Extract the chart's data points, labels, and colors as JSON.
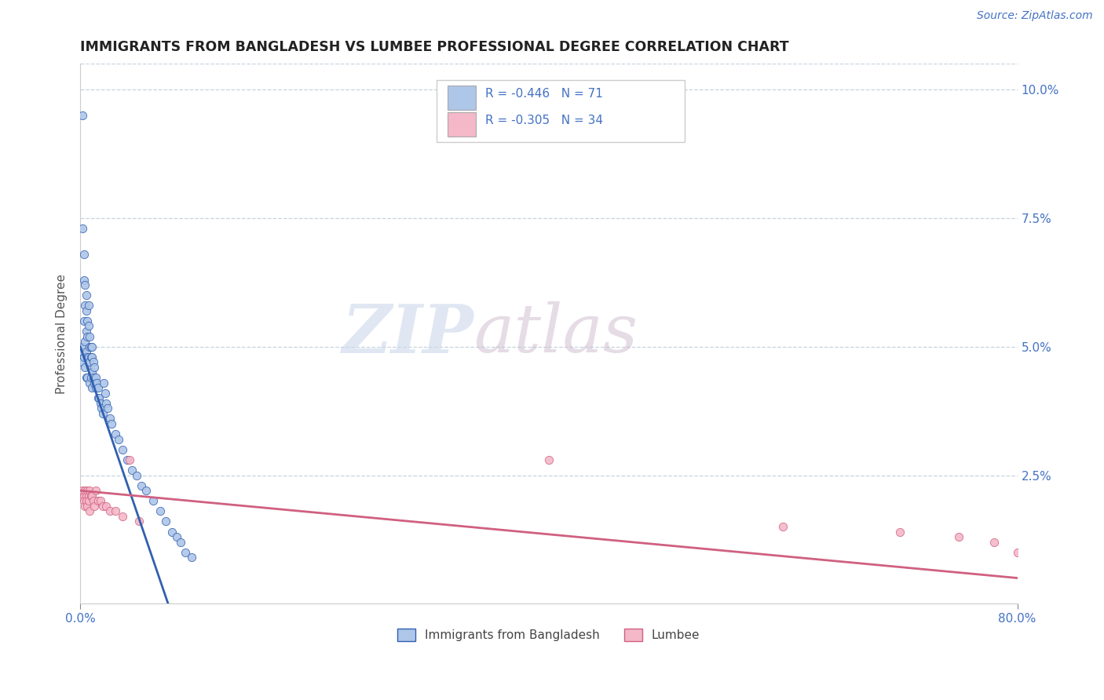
{
  "title": "IMMIGRANTS FROM BANGLADESH VS LUMBEE PROFESSIONAL DEGREE CORRELATION CHART",
  "source_text": "Source: ZipAtlas.com",
  "ylabel": "Professional Degree",
  "xlim": [
    0,
    0.8
  ],
  "ylim": [
    0,
    0.105
  ],
  "legend_label1": "Immigrants from Bangladesh",
  "legend_label2": "Lumbee",
  "r1": "-0.446",
  "n1": "71",
  "r2": "-0.305",
  "n2": "34",
  "color1": "#aec6e8",
  "color2": "#f4b8c8",
  "line_color1": "#3060b0",
  "line_color2": "#d06080",
  "blue_color": "#4472c4",
  "grid_color": "#b8c8d8",
  "scatter1_x": [
    0.001,
    0.001,
    0.002,
    0.002,
    0.002,
    0.003,
    0.003,
    0.003,
    0.003,
    0.004,
    0.004,
    0.004,
    0.004,
    0.005,
    0.005,
    0.005,
    0.005,
    0.005,
    0.006,
    0.006,
    0.006,
    0.006,
    0.007,
    0.007,
    0.007,
    0.008,
    0.008,
    0.008,
    0.008,
    0.009,
    0.009,
    0.009,
    0.01,
    0.01,
    0.01,
    0.01,
    0.011,
    0.011,
    0.012,
    0.012,
    0.013,
    0.013,
    0.014,
    0.015,
    0.015,
    0.016,
    0.017,
    0.018,
    0.019,
    0.02,
    0.021,
    0.022,
    0.023,
    0.025,
    0.027,
    0.03,
    0.033,
    0.036,
    0.04,
    0.044,
    0.048,
    0.052,
    0.056,
    0.062,
    0.068,
    0.073,
    0.078,
    0.082,
    0.086,
    0.09,
    0.095
  ],
  "scatter1_y": [
    0.049,
    0.047,
    0.095,
    0.073,
    0.05,
    0.068,
    0.063,
    0.055,
    0.048,
    0.062,
    0.058,
    0.051,
    0.046,
    0.06,
    0.057,
    0.053,
    0.049,
    0.044,
    0.055,
    0.052,
    0.048,
    0.044,
    0.058,
    0.054,
    0.048,
    0.052,
    0.05,
    0.047,
    0.043,
    0.05,
    0.048,
    0.044,
    0.05,
    0.048,
    0.045,
    0.042,
    0.047,
    0.044,
    0.046,
    0.043,
    0.044,
    0.042,
    0.043,
    0.042,
    0.04,
    0.04,
    0.039,
    0.038,
    0.037,
    0.043,
    0.041,
    0.039,
    0.038,
    0.036,
    0.035,
    0.033,
    0.032,
    0.03,
    0.028,
    0.026,
    0.025,
    0.023,
    0.022,
    0.02,
    0.018,
    0.016,
    0.014,
    0.013,
    0.012,
    0.01,
    0.009
  ],
  "scatter2_x": [
    0.001,
    0.002,
    0.003,
    0.003,
    0.004,
    0.004,
    0.005,
    0.005,
    0.006,
    0.006,
    0.007,
    0.007,
    0.008,
    0.008,
    0.009,
    0.01,
    0.011,
    0.012,
    0.013,
    0.015,
    0.017,
    0.019,
    0.022,
    0.025,
    0.03,
    0.036,
    0.042,
    0.05,
    0.4,
    0.6,
    0.7,
    0.75,
    0.78,
    0.8
  ],
  "scatter2_y": [
    0.021,
    0.022,
    0.021,
    0.02,
    0.022,
    0.019,
    0.021,
    0.02,
    0.022,
    0.019,
    0.021,
    0.02,
    0.022,
    0.018,
    0.021,
    0.021,
    0.02,
    0.019,
    0.022,
    0.02,
    0.02,
    0.019,
    0.019,
    0.018,
    0.018,
    0.017,
    0.028,
    0.016,
    0.028,
    0.015,
    0.014,
    0.013,
    0.012,
    0.01
  ],
  "blue_trend_x": [
    0.0,
    0.075
  ],
  "blue_trend_y": [
    0.05,
    0.0
  ],
  "pink_trend_x": [
    0.0,
    0.8
  ],
  "pink_trend_y": [
    0.022,
    0.005
  ]
}
